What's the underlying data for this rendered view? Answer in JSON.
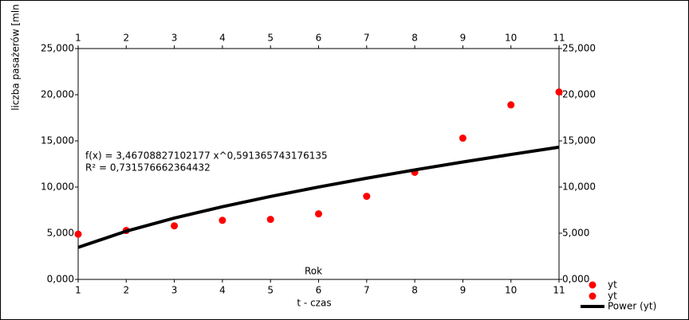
{
  "chart_data": {
    "type": "scatter",
    "y_label": "liczba pasażerów  [mln",
    "x_label": "t - czas",
    "annotation": "Rok",
    "equation": "f(x) = 3,46708827102177 x^0,591365743176135",
    "r_squared": "R² = 0,731576662364432",
    "x": [
      1,
      2,
      3,
      4,
      5,
      6,
      7,
      8,
      9,
      10,
      11
    ],
    "series": [
      {
        "name": "yt",
        "color": "#ff0000",
        "values": [
          4900,
          5300,
          5800,
          6400,
          6500,
          7100,
          9000,
          11600,
          15300,
          18900,
          20300
        ]
      },
      {
        "name": "Power (yt)",
        "color": "#000000",
        "type": "line",
        "values": [
          3467,
          5224,
          6639,
          7871,
          8981,
          10004,
          10959,
          11858,
          12714,
          13530,
          14318
        ]
      }
    ],
    "xlim": [
      1,
      11
    ],
    "xticks": [
      1,
      2,
      3,
      4,
      5,
      6,
      7,
      8,
      9,
      10,
      11
    ],
    "ylim": [
      0,
      25000
    ],
    "yticks": [
      {
        "value": 0,
        "label": "0,000"
      },
      {
        "value": 5000,
        "label": "5,000"
      },
      {
        "value": 10000,
        "label": "10,000"
      },
      {
        "value": 15000,
        "label": "15,000"
      },
      {
        "value": 20000,
        "label": "20,000"
      },
      {
        "value": 25000,
        "label": "25,000"
      }
    ],
    "y2lim": [
      0,
      25000
    ],
    "y2ticks": [
      {
        "value": 0,
        "label": "0,000"
      },
      {
        "value": 5000,
        "label": "5,000"
      },
      {
        "value": 10000,
        "label": "10,000"
      },
      {
        "value": 15000,
        "label": "15,000"
      },
      {
        "value": 20000,
        "label": "20,000"
      },
      {
        "value": 25000,
        "label": "25,000"
      }
    ],
    "grid": false
  }
}
